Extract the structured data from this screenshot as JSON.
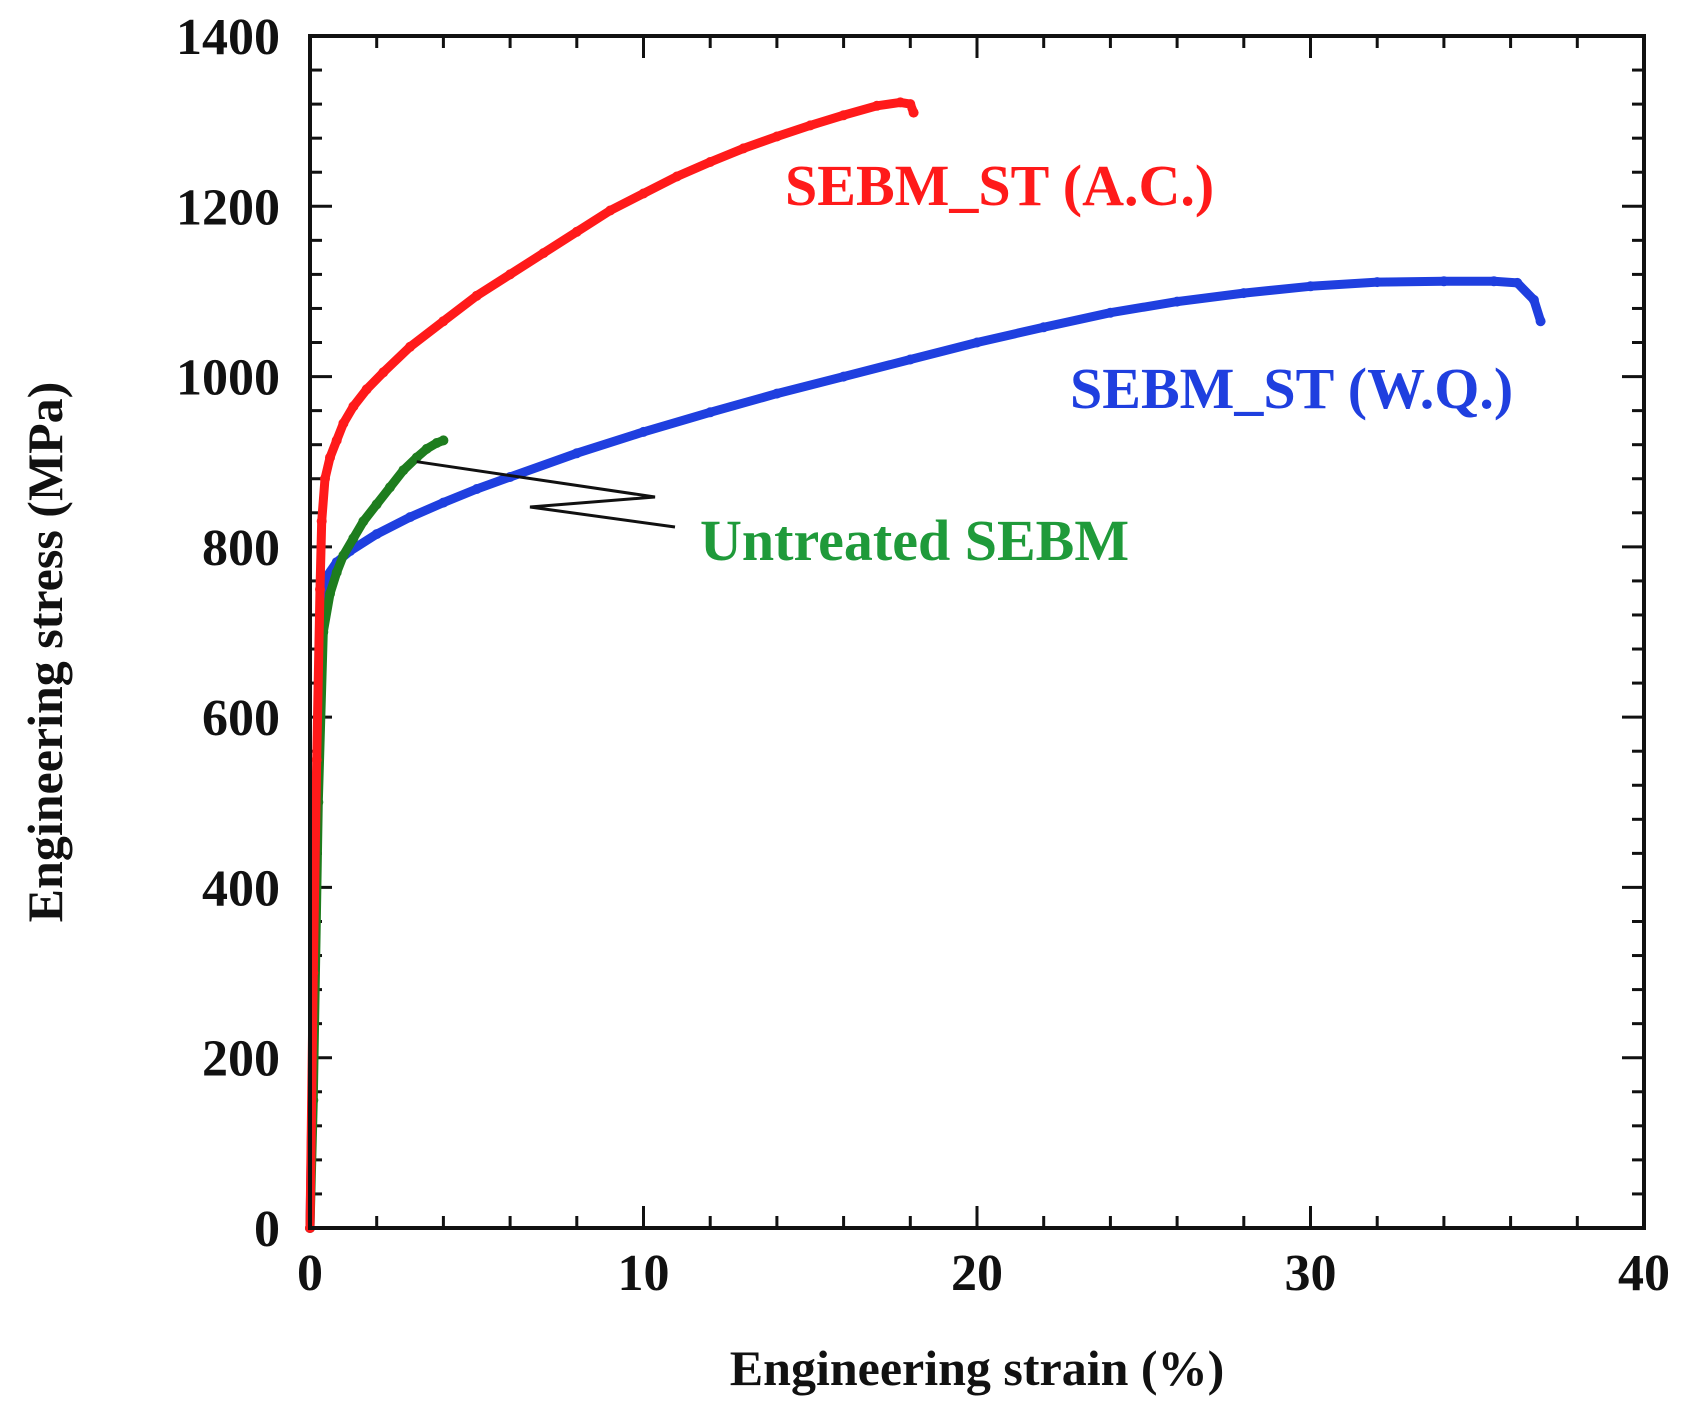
{
  "chart_data": {
    "type": "line",
    "title": "",
    "xlabel": "Engineering strain (%)",
    "ylabel": "Engineering stress (MPa)",
    "xlim": [
      0,
      40
    ],
    "ylim": [
      0,
      1400
    ],
    "x_ticks": [
      0,
      10,
      20,
      30,
      40
    ],
    "y_ticks": [
      0,
      200,
      400,
      600,
      800,
      1000,
      1200,
      1400
    ],
    "x_tick_labels": [
      "0",
      "10",
      "20",
      "30",
      "40"
    ],
    "y_tick_labels": [
      "0",
      "200",
      "400",
      "600",
      "800",
      "1000",
      "1200",
      "1400"
    ],
    "grid": false,
    "series": [
      {
        "name": "SEBM_ST (A.C.)",
        "color": "#ff1a1a",
        "x": [
          0,
          0.1,
          0.2,
          0.3,
          0.35,
          0.45,
          0.6,
          0.8,
          1.0,
          1.3,
          1.7,
          2.2,
          3.0,
          4.0,
          5.0,
          6.0,
          7.0,
          8.0,
          9.0,
          10.0,
          11.0,
          12.0,
          13.0,
          14.0,
          15.0,
          16.0,
          17.0,
          17.7,
          18.0,
          18.1
        ],
        "values": [
          0,
          300,
          550,
          750,
          830,
          880,
          905,
          925,
          945,
          965,
          985,
          1005,
          1035,
          1065,
          1095,
          1120,
          1145,
          1170,
          1195,
          1215,
          1235,
          1252,
          1268,
          1282,
          1295,
          1307,
          1318,
          1322,
          1320,
          1310
        ]
      },
      {
        "name": "SEBM_ST (W.Q.)",
        "color": "#1f3fdf",
        "x": [
          0,
          0.1,
          0.2,
          0.3,
          0.5,
          0.8,
          1.2,
          2.0,
          3.0,
          4.0,
          5.0,
          6.0,
          8.0,
          10.0,
          12.0,
          14.0,
          16.0,
          18.0,
          20.0,
          22.0,
          24.0,
          26.0,
          28.0,
          30.0,
          32.0,
          34.0,
          35.5,
          36.2,
          36.7,
          36.9
        ],
        "values": [
          0,
          250,
          500,
          700,
          765,
          782,
          795,
          815,
          835,
          852,
          868,
          882,
          910,
          935,
          958,
          980,
          1000,
          1020,
          1040,
          1058,
          1075,
          1088,
          1098,
          1106,
          1111,
          1112,
          1112,
          1110,
          1090,
          1065
        ]
      },
      {
        "name": "Untreated SEBM",
        "color": "#1e7d1e",
        "x": [
          0,
          0.1,
          0.25,
          0.4,
          0.6,
          0.8,
          1.0,
          1.3,
          1.6,
          2.0,
          2.4,
          2.8,
          3.2,
          3.5,
          3.8,
          4.0
        ],
        "values": [
          0,
          150,
          500,
          700,
          745,
          770,
          790,
          810,
          830,
          850,
          870,
          890,
          905,
          915,
          922,
          925
        ]
      }
    ],
    "annotations": [
      {
        "text": "SEBM_ST (A.C.)",
        "color": "#ff1a1a",
        "series": 0
      },
      {
        "text": "SEBM_ST (W.Q.)",
        "color": "#1f3fdf",
        "series": 1
      },
      {
        "text": "Untreated SEBM",
        "color": "#1f9a3a",
        "series": 2
      }
    ],
    "legend": "none"
  }
}
